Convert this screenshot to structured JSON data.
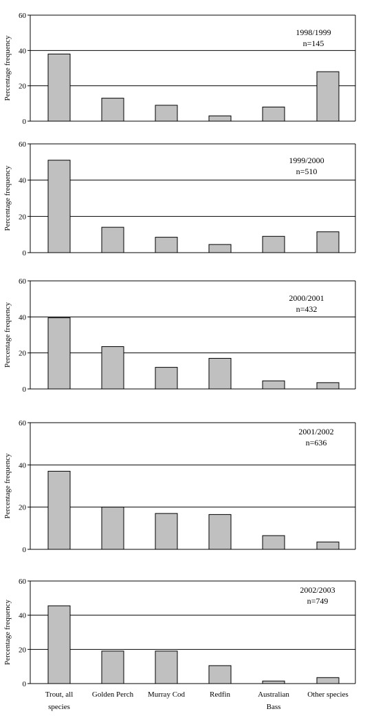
{
  "chart_data": [
    {
      "type": "bar",
      "annotation": [
        "1998/1999",
        "n=145"
      ],
      "ylabel": "Percentage frequency",
      "ylim": [
        0,
        60
      ],
      "yticks": [
        0,
        20,
        40,
        60
      ],
      "categories": [
        "Trout, all species",
        "Golden Perch",
        "Murray Cod",
        "Redfin",
        "Australian Bass",
        "Other species"
      ],
      "values": [
        38,
        13,
        9,
        3,
        8,
        28
      ]
    },
    {
      "type": "bar",
      "annotation": [
        "1999/2000",
        "n=510"
      ],
      "ylabel": "Percentage frequency",
      "ylim": [
        0,
        60
      ],
      "yticks": [
        0,
        20,
        40,
        60
      ],
      "categories": [
        "Trout, all species",
        "Golden Perch",
        "Murray Cod",
        "Redfin",
        "Australian Bass",
        "Other species"
      ],
      "values": [
        51,
        14,
        8.5,
        4.5,
        9,
        11.5
      ]
    },
    {
      "type": "bar",
      "annotation": [
        "2000/2001",
        "n=432"
      ],
      "ylabel": "Percentage frequency",
      "ylim": [
        0,
        60
      ],
      "yticks": [
        0,
        20,
        40,
        60
      ],
      "categories": [
        "Trout, all species",
        "Golden Perch",
        "Murray Cod",
        "Redfin",
        "Australian Bass",
        "Other species"
      ],
      "values": [
        39.5,
        23.5,
        12,
        17,
        4.5,
        3.5
      ]
    },
    {
      "type": "bar",
      "annotation": [
        "2001/2002",
        "n=636"
      ],
      "ylabel": "Percentage frequency",
      "ylim": [
        0,
        60
      ],
      "yticks": [
        0,
        20,
        40,
        60
      ],
      "categories": [
        "Trout, all species",
        "Golden Perch",
        "Murray Cod",
        "Redfin",
        "Australian Bass",
        "Other species"
      ],
      "values": [
        37,
        20,
        17,
        16.5,
        6.5,
        3.5
      ]
    },
    {
      "type": "bar",
      "annotation": [
        "2002/2003",
        "n=749"
      ],
      "ylabel": "Percentage frequency",
      "ylim": [
        0,
        60
      ],
      "yticks": [
        0,
        20,
        40,
        60
      ],
      "categories": [
        "Trout, all species",
        "Golden Perch",
        "Murray Cod",
        "Redfin",
        "Australian Bass",
        "Other species"
      ],
      "values": [
        45.5,
        19,
        19,
        10.5,
        1.5,
        3.5
      ]
    }
  ],
  "x_axis_labels": [
    [
      "Trout, all",
      "species"
    ],
    [
      "Golden Perch"
    ],
    [
      "Murray Cod"
    ],
    [
      "Redfin"
    ],
    [
      "Australian",
      "Bass"
    ],
    [
      "Other species"
    ]
  ],
  "colors": {
    "bar_fill": "#c0c0c0",
    "bar_stroke": "#000000",
    "line": "#000000",
    "background": "#ffffff"
  }
}
